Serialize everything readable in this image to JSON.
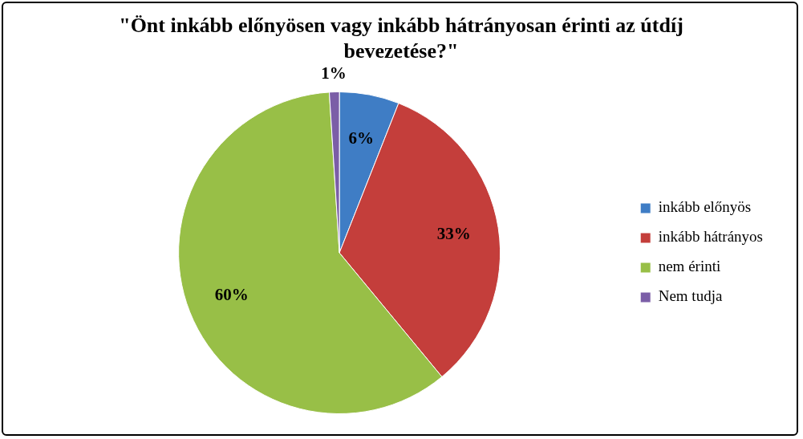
{
  "chart_data": {
    "type": "pie",
    "title": "\"Önt inkább előnyösen vagy inkább hátrányosan érinti az útdíj bevezetése?\"",
    "categories": [
      "inkább előnyös",
      "inkább hátrányos",
      "nem érinti",
      "Nem tudja"
    ],
    "values": [
      6,
      33,
      60,
      1
    ],
    "colors": [
      "#3f7dc5",
      "#c43e3b",
      "#98bf47",
      "#7b5ea7"
    ],
    "value_labels": [
      "6%",
      "33%",
      "60%",
      "1%"
    ],
    "legend": "right"
  }
}
